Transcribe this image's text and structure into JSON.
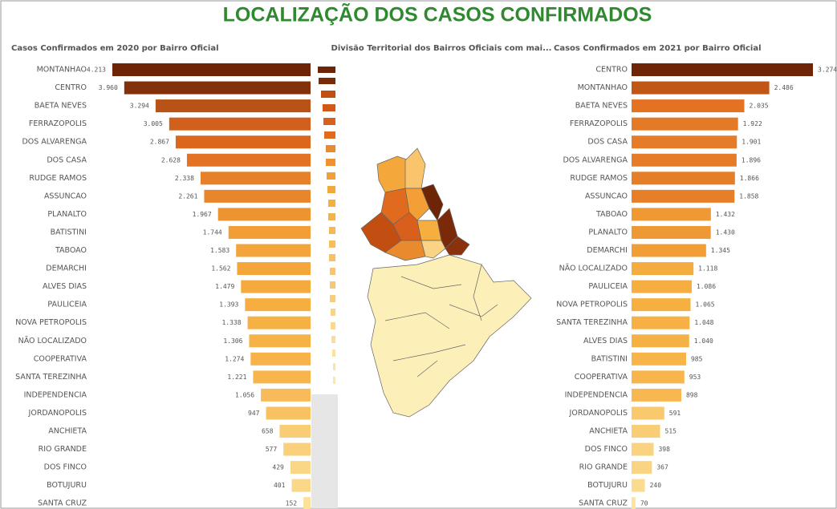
{
  "title": "LOCALIZAÇÃO DOS CASOS CONFIRMADOS",
  "map": {
    "title": "Divisão Territorial dos Bairros Oficiais com mai..."
  },
  "chart_data": [
    {
      "type": "hbar",
      "title": "Casos Confirmados em 2020 por Bairro Oficial",
      "direction": "left",
      "categories": [
        "MONTANHAO",
        "CENTRO",
        "BAETA NEVES",
        "FERRAZOPOLIS",
        "DOS ALVARENGA",
        "DOS CASA",
        "RUDGE RAMOS",
        "ASSUNCAO",
        "PLANALTO",
        "BATISTINI",
        "TABOAO",
        "DEMARCHI",
        "ALVES DIAS",
        "PAULICEIA",
        "NOVA PETROPOLIS",
        "NÃO LOCALIZADO",
        "COOPERATIVA",
        "SANTA TEREZINHA",
        "INDEPENDENCIA",
        "JORDANOPOLIS",
        "ANCHIETA",
        "RIO GRANDE",
        "DOS FINCO",
        "BOTUJURU",
        "SANTA CRUZ"
      ],
      "values": [
        4213,
        3960,
        3294,
        3005,
        2867,
        2628,
        2338,
        2261,
        1967,
        1744,
        1583,
        1562,
        1479,
        1393,
        1338,
        1306,
        1274,
        1221,
        1056,
        947,
        658,
        577,
        429,
        401,
        152
      ],
      "value_labels": [
        "4.213",
        "3.960",
        "3.294",
        "3.005",
        "2.867",
        "2.628",
        "2.338",
        "2.261",
        "1.967",
        "1.744",
        "1.583",
        "1.562",
        "1.479",
        "1.393",
        "1.338",
        "1.306",
        "1.274",
        "1.221",
        "1.056",
        "947",
        "658",
        "577",
        "429",
        "401",
        "152"
      ],
      "xlim": [
        0,
        4213
      ],
      "color_scale": [
        "#fce8a6",
        "#f6ae3f",
        "#e06a1e",
        "#6e2406"
      ]
    },
    {
      "type": "hbar",
      "title": "Casos Confirmados em 2021 por Bairro Oficial",
      "direction": "right",
      "categories": [
        "CENTRO",
        "MONTANHAO",
        "BAETA NEVES",
        "FERRAZOPOLIS",
        "DOS CASA",
        "DOS ALVARENGA",
        "RUDGE RAMOS",
        "ASSUNCAO",
        "TABOAO",
        "PLANALTO",
        "DEMARCHI",
        "NÃO LOCALIZADO",
        "PAULICEIA",
        "NOVA PETROPOLIS",
        "SANTA TEREZINHA",
        "ALVES DIAS",
        "BATISTINI",
        "COOPERATIVA",
        "INDEPENDENCIA",
        "JORDANOPOLIS",
        "ANCHIETA",
        "DOS FINCO",
        "RIO GRANDE",
        "BOTUJURU",
        "SANTA CRUZ"
      ],
      "values": [
        3274,
        2486,
        2035,
        1922,
        1901,
        1896,
        1866,
        1858,
        1432,
        1430,
        1345,
        1118,
        1086,
        1065,
        1048,
        1040,
        985,
        953,
        898,
        591,
        515,
        398,
        367,
        240,
        70
      ],
      "value_labels": [
        "3.274",
        "2.486",
        "2.035",
        "1.922",
        "1.901",
        "1.896",
        "1.866",
        "1.858",
        "1.432",
        "1.430",
        "1.345",
        "1.118",
        "1.086",
        "1.065",
        "1.048",
        "1.040",
        "985",
        "953",
        "898",
        "591",
        "515",
        "398",
        "367",
        "240",
        "70"
      ],
      "xlim": [
        0,
        3274
      ],
      "color_scale": [
        "#fce8a6",
        "#f6ae3f",
        "#e06a1e",
        "#6e2406"
      ]
    }
  ]
}
